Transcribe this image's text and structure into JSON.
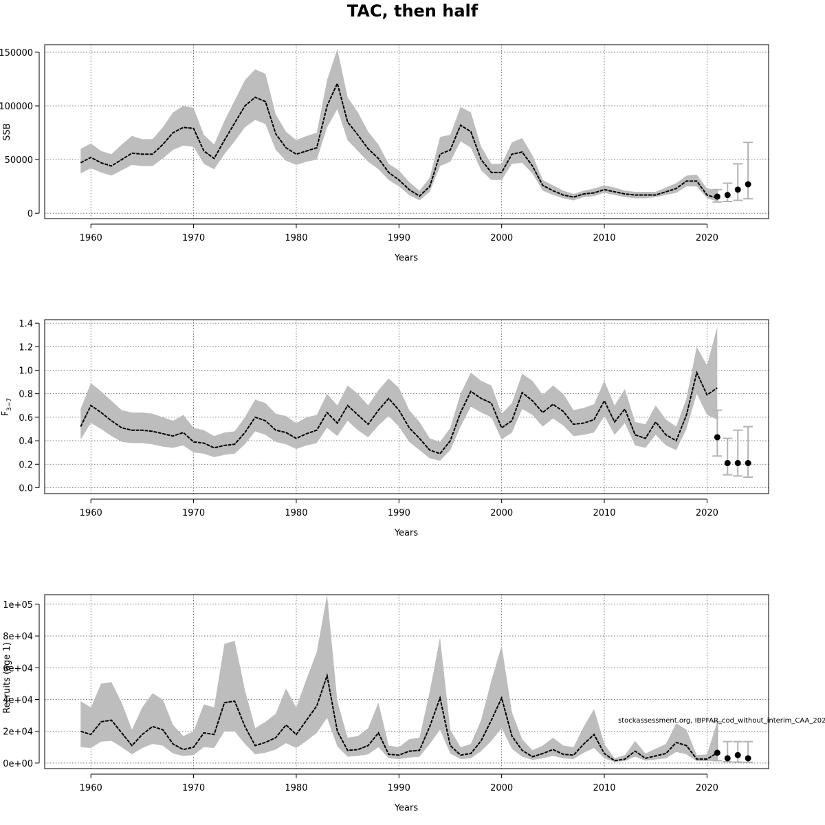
{
  "title": "TAC, then half",
  "credit": "stockassessment.org, IBPFAR_cod_without_interim_CAA_202",
  "colors": {
    "band": "#bdbdbd",
    "line": "#000000",
    "prediction_bar": "#b3b3b3",
    "point": "#000000"
  },
  "chart_data": [
    {
      "type": "line",
      "ylabel": "SSB",
      "xlabel": "Years",
      "xlim": [
        1955.5,
        2026
      ],
      "ylim": [
        -5000,
        157000
      ],
      "xticks": [
        1960,
        1970,
        1980,
        1990,
        2000,
        2010,
        2020
      ],
      "yticks": [
        0,
        50000,
        100000,
        150000
      ],
      "ytick_labels": [
        "0",
        "50000",
        "100000",
        "150000"
      ],
      "grid": true,
      "x": [
        1959,
        1960,
        1961,
        1962,
        1963,
        1964,
        1965,
        1966,
        1967,
        1968,
        1969,
        1970,
        1971,
        1972,
        1973,
        1974,
        1975,
        1976,
        1977,
        1978,
        1979,
        1980,
        1981,
        1982,
        1983,
        1984,
        1985,
        1986,
        1987,
        1988,
        1989,
        1990,
        1991,
        1992,
        1993,
        1994,
        1995,
        1996,
        1997,
        1998,
        1999,
        2000,
        2001,
        2002,
        2003,
        2004,
        2005,
        2006,
        2007,
        2008,
        2009,
        2010,
        2011,
        2012,
        2013,
        2014,
        2015,
        2016,
        2017,
        2018,
        2019,
        2020,
        2021
      ],
      "estimate": [
        47000,
        52000,
        47000,
        44000,
        50000,
        56000,
        55000,
        55000,
        64000,
        75000,
        80000,
        79000,
        58000,
        51000,
        68000,
        84000,
        100000,
        108000,
        104000,
        74000,
        61000,
        55000,
        58000,
        61000,
        100000,
        121000,
        85000,
        73000,
        60000,
        51000,
        38000,
        31000,
        22000,
        16000,
        25000,
        55000,
        59000,
        82000,
        76000,
        50000,
        38000,
        38000,
        55000,
        57000,
        44000,
        26000,
        21000,
        17000,
        15000,
        18000,
        19000,
        22000,
        20000,
        18000,
        17000,
        17000,
        17000,
        20000,
        23000,
        30000,
        30000,
        17000,
        14000
      ],
      "upper": [
        60000,
        65000,
        58000,
        55000,
        64000,
        72000,
        69000,
        69000,
        80000,
        94000,
        100000,
        98000,
        73000,
        64000,
        86000,
        105000,
        124000,
        134000,
        130000,
        92000,
        76000,
        68000,
        72000,
        75000,
        124000,
        153000,
        108000,
        94000,
        76000,
        64000,
        46000,
        40000,
        29000,
        21000,
        33000,
        71000,
        73000,
        99000,
        94000,
        62000,
        46000,
        46000,
        66000,
        70000,
        54000,
        31000,
        26000,
        21000,
        18000,
        21000,
        23000,
        26000,
        24000,
        21000,
        20000,
        20000,
        20000,
        24000,
        28000,
        35000,
        36000,
        23000,
        22000
      ],
      "lower": [
        37000,
        42000,
        38000,
        35000,
        40000,
        45000,
        44000,
        44000,
        51000,
        59000,
        63000,
        62000,
        46000,
        41000,
        55000,
        67000,
        80000,
        87000,
        83000,
        59000,
        49000,
        45000,
        48000,
        50000,
        80000,
        97000,
        68000,
        58000,
        48000,
        41000,
        31000,
        25000,
        17000,
        12000,
        20000,
        44000,
        48000,
        67000,
        61000,
        40000,
        31000,
        31000,
        46000,
        47000,
        37000,
        21000,
        17000,
        14000,
        12000,
        15000,
        16000,
        19000,
        17000,
        15000,
        14000,
        14000,
        15000,
        17000,
        19000,
        25000,
        25000,
        14000,
        11000
      ],
      "predictions": {
        "x": [
          2021,
          2022,
          2023,
          2024
        ],
        "median": [
          15500,
          17000,
          22000,
          27000
        ],
        "lower": [
          10500,
          11000,
          12000,
          13500
        ],
        "upper": [
          22000,
          28000,
          46000,
          66000
        ]
      }
    },
    {
      "type": "line",
      "ylabel": "F",
      "ylabel_sub": "3−7",
      "xlabel": "Years",
      "xlim": [
        1955.5,
        2026
      ],
      "ylim": [
        -0.05,
        1.43
      ],
      "xticks": [
        1960,
        1970,
        1980,
        1990,
        2000,
        2010,
        2020
      ],
      "yticks": [
        0,
        0.2,
        0.4,
        0.6,
        0.8,
        1,
        1.2,
        1.4
      ],
      "ytick_labels": [
        "0.0",
        "0.2",
        "0.4",
        "0.6",
        "0.8",
        "1.0",
        "1.2",
        "1.4"
      ],
      "grid": true,
      "x": [
        1959,
        1960,
        1961,
        1962,
        1963,
        1964,
        1965,
        1966,
        1967,
        1968,
        1969,
        1970,
        1971,
        1972,
        1973,
        1974,
        1975,
        1976,
        1977,
        1978,
        1979,
        1980,
        1981,
        1982,
        1983,
        1984,
        1985,
        1986,
        1987,
        1988,
        1989,
        1990,
        1991,
        1992,
        1993,
        1994,
        1995,
        1996,
        1997,
        1998,
        1999,
        2000,
        2001,
        2002,
        2003,
        2004,
        2005,
        2006,
        2007,
        2008,
        2009,
        2010,
        2011,
        2012,
        2013,
        2014,
        2015,
        2016,
        2017,
        2018,
        2019,
        2020,
        2021
      ],
      "estimate": [
        0.52,
        0.7,
        0.64,
        0.57,
        0.51,
        0.49,
        0.49,
        0.48,
        0.46,
        0.44,
        0.47,
        0.39,
        0.38,
        0.34,
        0.36,
        0.37,
        0.47,
        0.6,
        0.57,
        0.49,
        0.47,
        0.42,
        0.46,
        0.49,
        0.64,
        0.55,
        0.7,
        0.62,
        0.54,
        0.66,
        0.76,
        0.66,
        0.51,
        0.42,
        0.32,
        0.29,
        0.4,
        0.64,
        0.82,
        0.76,
        0.72,
        0.51,
        0.57,
        0.81,
        0.74,
        0.64,
        0.71,
        0.65,
        0.54,
        0.55,
        0.58,
        0.74,
        0.56,
        0.67,
        0.45,
        0.42,
        0.56,
        0.45,
        0.4,
        0.62,
        0.98,
        0.79,
        0.85
      ],
      "upper": [
        0.67,
        0.89,
        0.82,
        0.74,
        0.66,
        0.64,
        0.64,
        0.63,
        0.6,
        0.57,
        0.62,
        0.51,
        0.49,
        0.44,
        0.47,
        0.48,
        0.6,
        0.75,
        0.72,
        0.63,
        0.61,
        0.55,
        0.6,
        0.62,
        0.8,
        0.7,
        0.87,
        0.8,
        0.7,
        0.83,
        0.93,
        0.85,
        0.66,
        0.56,
        0.42,
        0.39,
        0.51,
        0.8,
        0.98,
        0.91,
        0.87,
        0.63,
        0.72,
        0.97,
        0.91,
        0.79,
        0.87,
        0.8,
        0.66,
        0.68,
        0.71,
        0.91,
        0.7,
        0.84,
        0.56,
        0.54,
        0.7,
        0.58,
        0.52,
        0.76,
        1.2,
        1.04,
        1.37
      ],
      "lower": [
        0.41,
        0.55,
        0.5,
        0.44,
        0.39,
        0.38,
        0.38,
        0.37,
        0.35,
        0.34,
        0.36,
        0.3,
        0.29,
        0.26,
        0.28,
        0.29,
        0.37,
        0.48,
        0.45,
        0.39,
        0.37,
        0.33,
        0.36,
        0.38,
        0.51,
        0.44,
        0.57,
        0.49,
        0.43,
        0.53,
        0.61,
        0.52,
        0.39,
        0.32,
        0.25,
        0.23,
        0.32,
        0.52,
        0.69,
        0.64,
        0.6,
        0.41,
        0.47,
        0.67,
        0.62,
        0.52,
        0.59,
        0.53,
        0.44,
        0.45,
        0.47,
        0.61,
        0.45,
        0.55,
        0.36,
        0.34,
        0.45,
        0.36,
        0.32,
        0.5,
        0.8,
        0.62,
        0.58
      ],
      "predictions": {
        "x": [
          2021,
          2022,
          2023,
          2024
        ],
        "median": [
          0.43,
          0.21,
          0.21,
          0.21
        ],
        "lower": [
          0.27,
          0.11,
          0.1,
          0.09
        ],
        "upper": [
          0.66,
          0.42,
          0.49,
          0.52
        ]
      }
    },
    {
      "type": "line",
      "ylabel": "Recruits (age 1)",
      "xlabel": "Years",
      "xlim": [
        1955.5,
        2026
      ],
      "ylim": [
        -3500,
        106000
      ],
      "xticks": [
        1960,
        1970,
        1980,
        1990,
        2000,
        2010,
        2020
      ],
      "yticks": [
        0,
        20000,
        40000,
        60000,
        80000,
        100000
      ],
      "ytick_labels": [
        "0e+00",
        "2e+04",
        "4e+04",
        "6e+04",
        "8e+04",
        "1e+05"
      ],
      "grid": true,
      "x": [
        1959,
        1960,
        1961,
        1962,
        1963,
        1964,
        1965,
        1966,
        1967,
        1968,
        1969,
        1970,
        1971,
        1972,
        1973,
        1974,
        1975,
        1976,
        1977,
        1978,
        1979,
        1980,
        1981,
        1982,
        1983,
        1984,
        1985,
        1986,
        1987,
        1988,
        1989,
        1990,
        1991,
        1992,
        1993,
        1994,
        1995,
        1996,
        1997,
        1998,
        1999,
        2000,
        2001,
        2002,
        2003,
        2004,
        2005,
        2006,
        2007,
        2008,
        2009,
        2010,
        2011,
        2012,
        2013,
        2014,
        2015,
        2016,
        2017,
        2018,
        2019,
        2020,
        2021
      ],
      "estimate": [
        20000,
        18000,
        26000,
        27000,
        19000,
        11000,
        18000,
        23000,
        21000,
        12000,
        8500,
        10000,
        19000,
        18000,
        38000,
        39000,
        23000,
        11000,
        13000,
        16000,
        24000,
        18000,
        27000,
        36000,
        55000,
        20000,
        8000,
        8500,
        11000,
        19000,
        5500,
        5000,
        7500,
        8000,
        23000,
        41000,
        11000,
        5000,
        6000,
        14000,
        27000,
        41000,
        17000,
        8000,
        4000,
        6000,
        8500,
        5500,
        5000,
        12000,
        18000,
        6000,
        1500,
        2500,
        7500,
        3000,
        4500,
        6000,
        13000,
        11000,
        2500,
        2500,
        6500
      ],
      "upper": [
        39000,
        35000,
        50000,
        51000,
        38000,
        21000,
        35000,
        44000,
        40000,
        24000,
        17000,
        20000,
        37000,
        35000,
        75000,
        77000,
        46000,
        22000,
        26000,
        31000,
        47000,
        35000,
        53000,
        70000,
        106000,
        39000,
        16000,
        17000,
        22000,
        38000,
        11000,
        10000,
        15000,
        16000,
        45000,
        79000,
        21000,
        10000,
        12000,
        27000,
        52000,
        74000,
        32000,
        15000,
        8000,
        11000,
        16000,
        11000,
        10000,
        23000,
        34000,
        12000,
        3000,
        5000,
        14000,
        6000,
        9000,
        12000,
        25000,
        21000,
        5000,
        5500,
        26000
      ],
      "lower": [
        10000,
        9500,
        13500,
        14000,
        10000,
        5500,
        9500,
        12000,
        11000,
        6000,
        4500,
        5000,
        10000,
        9500,
        20000,
        20000,
        12000,
        5500,
        6500,
        8500,
        12500,
        9500,
        14000,
        19000,
        28500,
        10500,
        4000,
        4500,
        5500,
        10000,
        3000,
        2500,
        3500,
        4000,
        12000,
        21000,
        6000,
        2500,
        3000,
        7500,
        14000,
        22000,
        9000,
        4000,
        2000,
        3000,
        4500,
        3000,
        2500,
        6500,
        9500,
        3000,
        700,
        1300,
        4000,
        1500,
        2300,
        3000,
        7000,
        5500,
        1200,
        1200,
        1500
      ],
      "predictions": {
        "x": [
          2021,
          2022,
          2023,
          2024
        ],
        "median": [
          6500,
          3000,
          5000,
          3000
        ],
        "lower": [
          1500,
          800,
          600,
          500
        ],
        "upper": [
          26000,
          13500,
          13500,
          13500
        ]
      }
    }
  ]
}
